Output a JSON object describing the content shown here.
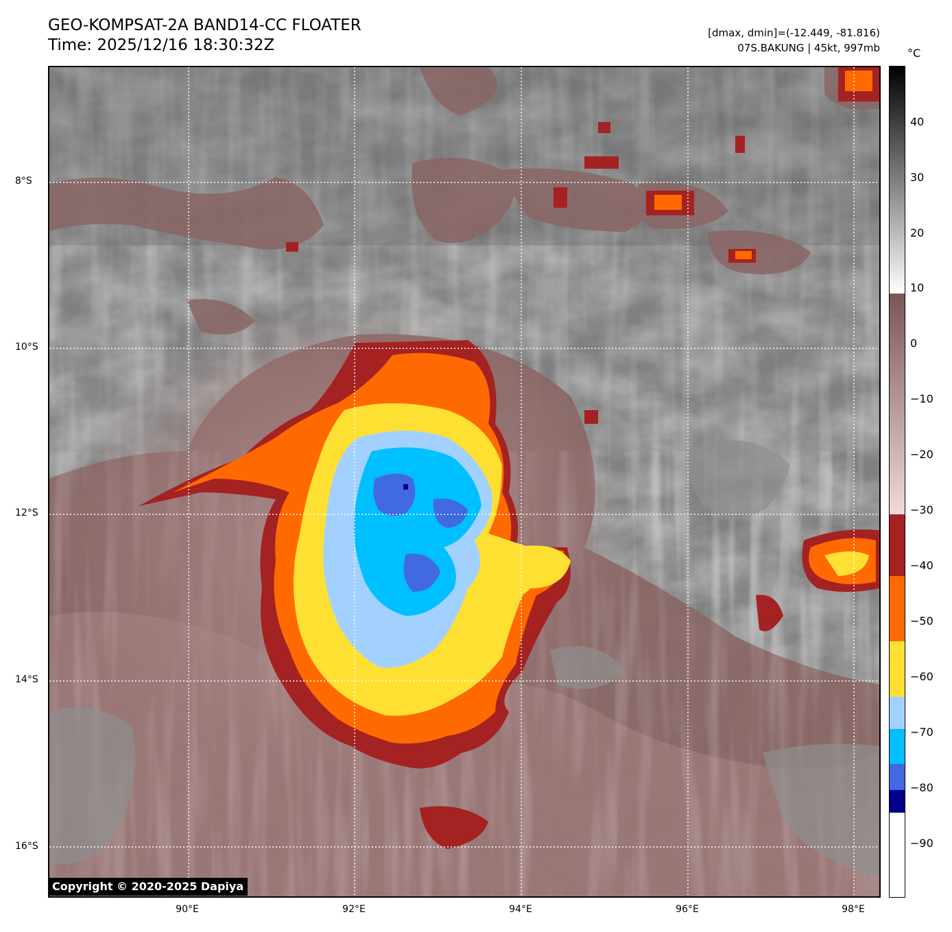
{
  "header": {
    "title_line1": "GEO-KOMPSAT-2A BAND14-CC FLOATER",
    "title_line2": "Time: 2025/12/16 18:30:32Z",
    "info_line1": "[dmax, dmin]=(-12.449, -81.816)",
    "info_line2": "07S.BAKUNG | 45kt, 997mb"
  },
  "map": {
    "lat_labels": [
      "8°S",
      "10°S",
      "12°S",
      "14°S",
      "16°S"
    ],
    "lon_labels": [
      "90°E",
      "92°E",
      "94°E",
      "96°E",
      "98°E"
    ],
    "copyright": "Copyright © 2020-2025 Dapiya"
  },
  "colorbar": {
    "unit": "°C",
    "tick_labels": [
      "40",
      "30",
      "20",
      "10",
      "0",
      "−10",
      "−20",
      "−30",
      "−40",
      "−50",
      "−60",
      "−70",
      "−80",
      "−90"
    ],
    "colors": {
      "dark_red": "#a52222",
      "orange": "#ff6a00",
      "yellow": "#fee033",
      "light_blue": "#a2d1ff",
      "cyan": "#00bfff",
      "blue": "#4169e1",
      "dark_blue": "#00008b",
      "mauve": "#8a6565",
      "pink_light": "#e9cfcf",
      "gray": "#7a7a7a"
    }
  }
}
